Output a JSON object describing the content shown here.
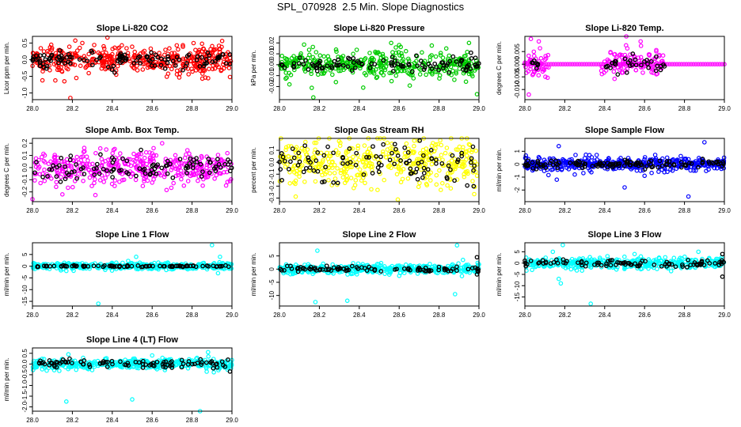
{
  "page": {
    "title": "SPL_070928  2.5 Min. Slope Diagnostics"
  },
  "chart_data": [
    {
      "type": "scatter",
      "title": "Slope Li-820 CO2",
      "ylabel": "Licor ppm per min.",
      "color": "#ff0000",
      "xlim": [
        28.0,
        29.0
      ],
      "ylim": [
        -1.2,
        0.7
      ],
      "xticks": [
        28.0,
        28.2,
        28.4,
        28.6,
        28.8,
        29.0
      ],
      "xtick_labels": [
        "28.0",
        "28.2",
        "28.4",
        "28.6",
        "28.8",
        "29.0"
      ],
      "yticks": [
        -1.0,
        -0.5,
        0.0,
        0.5
      ],
      "ytick_labels": [
        "-1.0",
        "-0.5",
        "0.0",
        "0.5"
      ],
      "series": [
        {
          "name": "colored",
          "noise": 0.22,
          "n": 420,
          "outliers": [
            [
              28.19,
              -1.15
            ],
            [
              28.16,
              -0.65
            ],
            [
              28.05,
              -0.62
            ],
            [
              28.22,
              -0.55
            ],
            [
              28.42,
              -0.45
            ],
            [
              28.68,
              -0.42
            ],
            [
              28.99,
              -0.52
            ],
            [
              28.25,
              0.5
            ],
            [
              28.85,
              0.48
            ]
          ]
        },
        {
          "name": "black",
          "noise": 0.13,
          "n": 120,
          "outliers": []
        }
      ]
    },
    {
      "type": "scatter",
      "title": "Slope Li-820 Pressure",
      "ylabel": "kPa per min.",
      "color": "#00cc00",
      "xlim": [
        28.0,
        29.0
      ],
      "ylim": [
        -0.032,
        0.026
      ],
      "xticks": [
        28.0,
        28.2,
        28.4,
        28.6,
        28.8,
        29.0
      ],
      "xtick_labels": [
        "28.0",
        "28.2",
        "28.4",
        "28.6",
        "28.8",
        "29.0"
      ],
      "yticks": [
        -0.02,
        -0.01,
        0.0,
        0.01,
        0.02
      ],
      "ytick_labels": [
        "-0.02",
        "-0.01",
        "0.00",
        "0.01",
        "0.02"
      ],
      "series": [
        {
          "name": "colored",
          "noise": 0.006,
          "n": 400,
          "outliers": [
            [
              28.17,
              -0.03
            ],
            [
              28.05,
              -0.018
            ],
            [
              28.99,
              -0.027
            ],
            [
              28.42,
              -0.021
            ],
            [
              28.56,
              0.02
            ],
            [
              28.6,
              0.018
            ],
            [
              28.95,
              0.02
            ]
          ]
        },
        {
          "name": "black",
          "noise": 0.003,
          "n": 100,
          "outliers": [
            [
              28.96,
              0.011
            ],
            [
              28.85,
              -0.007
            ]
          ]
        }
      ]
    },
    {
      "type": "scatter",
      "title": "Slope Li-820 Temp.",
      "ylabel": "degrees C per min.",
      "color": "#ff00ff",
      "xlim": [
        28.0,
        29.0
      ],
      "ylim": [
        -0.014,
        0.011
      ],
      "xticks": [
        28.0,
        28.2,
        28.4,
        28.6,
        28.8,
        29.0
      ],
      "xtick_labels": [
        "28.0",
        "28.2",
        "28.4",
        "28.6",
        "28.8",
        "29.0"
      ],
      "yticks": [
        -0.01,
        -0.005,
        0.0,
        0.005
      ],
      "ytick_labels": [
        "-0.010",
        "-0.005",
        "0.000",
        "0.005"
      ],
      "series": [
        {
          "name": "colored",
          "noise": 0.003,
          "n": 160,
          "xranges": [
            [
              28.0,
              28.12
            ],
            [
              28.38,
              28.7
            ]
          ],
          "outliers": [
            [
              28.03,
              0.01
            ],
            [
              28.07,
              0.009
            ],
            [
              28.02,
              -0.012
            ],
            [
              28.58,
              0.009
            ]
          ]
        },
        {
          "name": "baseline",
          "noise": 0.0,
          "n": 85,
          "xranges": [
            [
              28.0,
              29.0
            ]
          ],
          "outliers": []
        },
        {
          "name": "black",
          "noise": 0.0018,
          "n": 40,
          "xranges": [
            [
              28.0,
              28.1
            ],
            [
              28.4,
              28.7
            ]
          ],
          "outliers": []
        }
      ]
    },
    {
      "type": "scatter",
      "title": "Slope Amb. Box Temp.",
      "ylabel": "degrees C per min.",
      "color": "#ff00ff",
      "xlim": [
        28.0,
        29.0
      ],
      "ylim": [
        -0.28,
        0.24
      ],
      "xticks": [
        28.0,
        28.2,
        28.4,
        28.6,
        28.8,
        29.0
      ],
      "xtick_labels": [
        "28.0",
        "28.2",
        "28.4",
        "28.6",
        "28.8",
        "29.0"
      ],
      "yticks": [
        -0.2,
        -0.1,
        0.0,
        0.1,
        0.2
      ],
      "ytick_labels": [
        "-0.2",
        "-0.1",
        "0.0",
        "0.1",
        "0.2"
      ],
      "series": [
        {
          "name": "colored",
          "noise": 0.07,
          "n": 400,
          "outliers": [
            [
              28.0,
              -0.26
            ],
            [
              28.65,
              0.2
            ],
            [
              28.15,
              -0.22
            ]
          ]
        },
        {
          "name": "black",
          "noise": 0.05,
          "n": 100,
          "outliers": []
        }
      ]
    },
    {
      "type": "scatter",
      "title": "Slope Gas Stream RH",
      "ylabel": "percent per min.",
      "color": "#ffff00",
      "xlim": [
        28.0,
        29.0
      ],
      "ylim": [
        -0.33,
        0.2
      ],
      "xticks": [
        28.0,
        28.2,
        28.4,
        28.6,
        28.8,
        29.0
      ],
      "xtick_labels": [
        "28.0",
        "28.2",
        "28.4",
        "28.6",
        "28.8",
        "29.0"
      ],
      "yticks": [
        -0.3,
        -0.2,
        -0.1,
        0.0,
        0.1
      ],
      "ytick_labels": [
        "-0.3",
        "-0.2",
        "-0.1",
        "0.0",
        "0.1"
      ],
      "series": [
        {
          "name": "colored",
          "noise": 0.1,
          "n": 420,
          "outliers": [
            [
              28.13,
              0.17
            ],
            [
              28.95,
              0.15
            ]
          ]
        },
        {
          "name": "black",
          "noise": 0.09,
          "n": 100,
          "outliers": [
            [
              28.97,
              0.13
            ]
          ]
        }
      ]
    },
    {
      "type": "scatter",
      "title": "Slope Sample Flow",
      "ylabel": "ml/min per min.",
      "color": "#0000ff",
      "xlim": [
        28.0,
        29.0
      ],
      "ylim": [
        -2.9,
        2.0
      ],
      "xticks": [
        28.0,
        28.2,
        28.4,
        28.6,
        28.8,
        29.0
      ],
      "xtick_labels": [
        "28.0",
        "28.2",
        "28.4",
        "28.6",
        "28.8",
        "29.0"
      ],
      "yticks": [
        -2,
        -1,
        0,
        1
      ],
      "ytick_labels": [
        "-2",
        "-1",
        "0",
        "1"
      ],
      "series": [
        {
          "name": "colored",
          "noise": 0.25,
          "n": 450,
          "outliers": [
            [
              28.17,
              1.4
            ],
            [
              28.14,
              -0.4
            ],
            [
              28.16,
              -1.2
            ],
            [
              28.25,
              -0.8
            ],
            [
              28.5,
              -1.8
            ],
            [
              28.6,
              -0.9
            ],
            [
              28.82,
              -2.5
            ],
            [
              28.9,
              1.7
            ],
            [
              28.74,
              -0.5
            ]
          ]
        },
        {
          "name": "black",
          "noise": 0.15,
          "n": 120,
          "outliers": []
        }
      ]
    },
    {
      "type": "scatter",
      "title": "Slope Line 1 Flow",
      "ylabel": "ml/min per min.",
      "color": "#00ffff",
      "xlim": [
        28.0,
        29.0
      ],
      "ylim": [
        -17,
        10
      ],
      "xticks": [
        28.0,
        28.2,
        28.4,
        28.6,
        28.8,
        29.0
      ],
      "xtick_labels": [
        "28.0",
        "28.2",
        "28.4",
        "28.6",
        "28.8",
        "29.0"
      ],
      "yticks": [
        -15,
        -10,
        -5,
        0,
        5
      ],
      "ytick_labels": [
        "-15",
        "-10",
        "-5",
        "0",
        "5"
      ],
      "series": [
        {
          "name": "colored",
          "noise": 0.7,
          "n": 420,
          "outliers": [
            [
              28.33,
              -16
            ],
            [
              28.9,
              9
            ],
            [
              28.94,
              4
            ],
            [
              28.93,
              -3
            ],
            [
              28.52,
              4
            ],
            [
              28.17,
              -2
            ]
          ]
        },
        {
          "name": "black",
          "noise": 0.15,
          "n": 90,
          "outliers": []
        }
      ]
    },
    {
      "type": "scatter",
      "title": "Slope Line 2 Flow",
      "ylabel": "ml/min per min.",
      "color": "#00ffff",
      "xlim": [
        28.0,
        29.0
      ],
      "ylim": [
        -14,
        10
      ],
      "xticks": [
        28.0,
        28.2,
        28.4,
        28.6,
        28.8,
        29.0
      ],
      "xtick_labels": [
        "28.0",
        "28.2",
        "28.4",
        "28.6",
        "28.8",
        "29.0"
      ],
      "yticks": [
        -10,
        -5,
        0,
        5
      ],
      "ytick_labels": [
        "-10",
        "-5",
        "0",
        "5"
      ],
      "series": [
        {
          "name": "colored",
          "noise": 0.9,
          "n": 420,
          "outliers": [
            [
              28.18,
              -12.5
            ],
            [
              28.34,
              -12
            ],
            [
              28.88,
              -9.5
            ],
            [
              28.89,
              9
            ],
            [
              28.92,
              3.5
            ],
            [
              28.19,
              7
            ]
          ]
        },
        {
          "name": "black",
          "noise": 0.5,
          "n": 90,
          "outliers": [
            [
              28.99,
              4.5
            ],
            [
              28.99,
              -2
            ]
          ]
        }
      ]
    },
    {
      "type": "scatter",
      "title": "Slope Line 3 Flow",
      "ylabel": "ml/min per min.",
      "color": "#00ffff",
      "xlim": [
        28.0,
        29.0
      ],
      "ylim": [
        -19,
        9
      ],
      "xticks": [
        28.0,
        28.2,
        28.4,
        28.6,
        28.8,
        29.0
      ],
      "xtick_labels": [
        "28.0",
        "28.2",
        "28.4",
        "28.6",
        "28.8",
        "29.0"
      ],
      "yticks": [
        -15,
        -10,
        -5,
        0,
        5
      ],
      "ytick_labels": [
        "-15",
        "-10",
        "-5",
        "0",
        "5"
      ],
      "series": [
        {
          "name": "colored",
          "noise": 1.2,
          "n": 420,
          "outliers": [
            [
              28.33,
              -18
            ],
            [
              28.17,
              -7
            ],
            [
              28.18,
              -9
            ],
            [
              28.19,
              8
            ],
            [
              28.14,
              5
            ],
            [
              28.87,
              5
            ],
            [
              28.55,
              4
            ]
          ]
        },
        {
          "name": "black",
          "noise": 0.8,
          "n": 90,
          "outliers": [
            [
              28.99,
              -6
            ],
            [
              28.99,
              4
            ]
          ]
        }
      ]
    },
    {
      "type": "scatter",
      "title": "Slope Line 4 (LT) Flow",
      "ylabel": "ml/min per min.",
      "color": "#00ffff",
      "xlim": [
        28.0,
        29.0
      ],
      "ylim": [
        -2.2,
        0.75
      ],
      "xticks": [
        28.0,
        28.2,
        28.4,
        28.6,
        28.8,
        29.0
      ],
      "xtick_labels": [
        "28.0",
        "28.2",
        "28.4",
        "28.6",
        "28.8",
        "29.0"
      ],
      "yticks": [
        -2.0,
        -1.5,
        -1.0,
        -0.5,
        0.0,
        0.5
      ],
      "ytick_labels": [
        "-2.0",
        "-1.5",
        "-1.0",
        "-0.5",
        "0.0",
        "0.5"
      ],
      "series": [
        {
          "name": "colored",
          "noise": 0.12,
          "n": 420,
          "outliers": [
            [
              28.17,
              -1.75
            ],
            [
              28.5,
              -1.65
            ],
            [
              28.84,
              -2.2
            ],
            [
              28.88,
              0.55
            ],
            [
              28.6,
              0.4
            ],
            [
              28.18,
              0.45
            ]
          ]
        },
        {
          "name": "black",
          "noise": 0.1,
          "n": 90,
          "outliers": [
            [
              28.99,
              -0.35
            ],
            [
              28.98,
              0.2
            ]
          ]
        }
      ]
    }
  ]
}
